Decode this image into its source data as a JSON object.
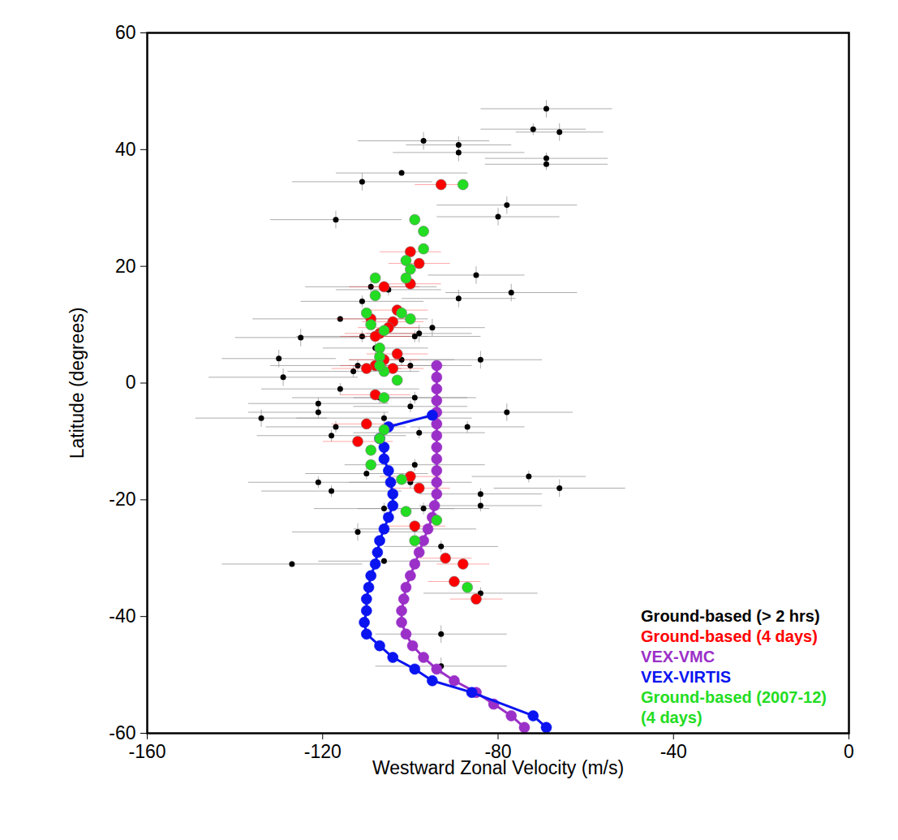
{
  "chart_data": {
    "type": "scatter",
    "xlabel": "Westward Zonal Velocity (m/s)",
    "ylabel": "Latitude (degrees)",
    "xlim": [
      -160,
      0
    ],
    "ylim": [
      -60,
      60
    ],
    "xticks": [
      -160,
      -120,
      -80,
      -40,
      0
    ],
    "yticks": [
      -60,
      -40,
      -20,
      0,
      20,
      40,
      60
    ],
    "grid": false,
    "legend": "bottom-right",
    "series": [
      {
        "name": "Ground-based (> 2 hrs)",
        "color": "#000000",
        "type": "scatter",
        "marker": "circle",
        "x": [
          -69,
          -72,
          -66,
          -97,
          -89,
          -89,
          -69,
          -69,
          -102,
          -111,
          -78,
          -117,
          -80,
          -85,
          -77,
          -89,
          -109,
          -105,
          -111,
          -116,
          -95,
          -98,
          -99,
          -125,
          -111,
          -108,
          -130,
          -102,
          -84,
          -112,
          -113,
          -129,
          -100,
          -116,
          -107,
          -99,
          -100,
          -78,
          -121,
          -121,
          -134,
          -106,
          -87,
          -117,
          -118,
          -98,
          -110,
          -99,
          -73,
          -66,
          -121,
          -118,
          -84,
          -84,
          -106,
          -97,
          -99,
          -112,
          -127,
          -106,
          -93,
          -84,
          -93,
          -93,
          -100
        ],
        "y": [
          47,
          43.5,
          43,
          41.5,
          40.8,
          39.5,
          38.5,
          37.5,
          36,
          34.5,
          30.5,
          28,
          28.5,
          18.5,
          15.5,
          14.5,
          16.5,
          16,
          14,
          11,
          9.5,
          8.5,
          8,
          7.8,
          8,
          6,
          4.2,
          4,
          4,
          3,
          2,
          1,
          3,
          -1,
          -2.5,
          -2.5,
          -4,
          -5,
          -3.5,
          -5,
          -6,
          -6,
          -7.5,
          -7.5,
          -9,
          -8.5,
          -15.5,
          -14,
          -16,
          -18,
          -17,
          -18.5,
          -19,
          -21,
          -21.5,
          -21.5,
          -25,
          -25.5,
          -31,
          -30.5,
          -28,
          -36,
          -43,
          -48.5,
          -17
        ],
        "xerr": [
          15,
          12,
          10,
          15,
          12,
          15,
          14,
          14,
          15,
          16,
          16,
          15,
          14,
          11,
          15,
          13,
          15,
          12,
          14,
          20,
          12,
          12,
          15,
          15,
          15,
          12,
          13,
          12,
          14,
          20,
          15,
          17,
          14,
          18,
          20,
          14,
          13,
          15,
          16,
          16,
          15,
          20,
          13,
          16,
          17,
          15,
          14,
          16,
          13,
          15,
          16,
          16,
          14,
          14,
          16,
          15,
          14,
          15,
          16,
          15,
          13,
          13,
          15,
          15,
          14
        ],
        "yerr": [
          1.5,
          1,
          1.5,
          1.5,
          1.5,
          1.5,
          1,
          1,
          0.5,
          1.5,
          1.5,
          1.5,
          1.5,
          1.5,
          1.5,
          1.5,
          1,
          1,
          1,
          0.5,
          1.5,
          1.5,
          1,
          1.5,
          1,
          1,
          1.5,
          1,
          1.5,
          1,
          1,
          1.5,
          1,
          1,
          1,
          1,
          1,
          1.5,
          1,
          1,
          1.5,
          1,
          1,
          1,
          1,
          1,
          1,
          1,
          1,
          1.5,
          1,
          1,
          1,
          1,
          1,
          1,
          1,
          1.5,
          0.5,
          0.5,
          1,
          1,
          1.5,
          1.5,
          1
        ]
      },
      {
        "name": "Ground-based (4 days)",
        "color": "#ff0000",
        "type": "scatter",
        "marker": "circle",
        "x": [
          -93,
          -100,
          -98,
          -100,
          -106,
          -103,
          -109,
          -104,
          -105,
          -107,
          -108,
          -103,
          -106,
          -108,
          -110,
          -104,
          -108,
          -110,
          -112,
          -100,
          -98,
          -99,
          -92,
          -88,
          -90,
          -85
        ],
        "y": [
          34,
          22.5,
          20.5,
          17,
          16.5,
          12.5,
          11,
          10.5,
          9.5,
          8.5,
          8,
          5,
          4,
          3,
          2.5,
          2.5,
          -2,
          -7,
          -10,
          -16,
          -18,
          -24.5,
          -30,
          -31,
          -34,
          -37
        ],
        "xerr": [
          6,
          7,
          7,
          7,
          8,
          7,
          8,
          7,
          7,
          8,
          8,
          7,
          8,
          8,
          8,
          7,
          8,
          8,
          8,
          7,
          7,
          7,
          6,
          6,
          6,
          6
        ]
      },
      {
        "name": "VEX-VMC",
        "color": "#9b30c8",
        "type": "line",
        "marker": "circle",
        "x": [
          -94,
          -94,
          -94,
          -94,
          -94,
          -94,
          -94,
          -94,
          -94,
          -94,
          -94,
          -94,
          -94.5,
          -95,
          -96,
          -97,
          -98,
          -99,
          -100,
          -101,
          -101.5,
          -102,
          -102,
          -101,
          -99.5,
          -97,
          -94,
          -90,
          -85,
          -81,
          -77,
          -74
        ],
        "y": [
          3,
          1,
          -1,
          -3,
          -5,
          -7,
          -9,
          -11,
          -13,
          -15,
          -17,
          -19,
          -21,
          -23,
          -25,
          -27,
          -29,
          -31,
          -33,
          -35,
          -37,
          -39,
          -41,
          -43,
          -45,
          -47,
          -49,
          -51,
          -53,
          -55,
          -57,
          -59
        ]
      },
      {
        "name": "VEX-VIRTIS",
        "color": "#0a14f0",
        "type": "line",
        "marker": "circle",
        "x": [
          -95,
          -105,
          -107,
          -106,
          -106,
          -105,
          -104.5,
          -104,
          -104,
          -105,
          -106,
          -107,
          -107.5,
          -108,
          -109,
          -109.5,
          -110,
          -110,
          -110.5,
          -110,
          -107,
          -104,
          -99,
          -95,
          -86,
          -72,
          -69
        ],
        "y": [
          -5.5,
          -7.5,
          -9.5,
          -11,
          -13,
          -15,
          -17,
          -19,
          -21,
          -23,
          -25,
          -27,
          -29,
          -31,
          -33,
          -35,
          -37,
          -39,
          -41,
          -43,
          -45,
          -47,
          -49,
          -51,
          -53,
          -57,
          -59
        ]
      },
      {
        "name": "Ground-based (2007-12)\n(4 days)",
        "color": "#22dd22",
        "type": "scatter",
        "marker": "circle",
        "x": [
          -88,
          -99,
          -97,
          -97,
          -101,
          -100,
          -101,
          -108,
          -108,
          -110,
          -102,
          -109,
          -106,
          -100,
          -107,
          -107,
          -106,
          -107,
          -103,
          -106,
          -106,
          -107,
          -109,
          -109,
          -102,
          -101,
          -99,
          -94,
          -87
        ],
        "y": [
          34,
          28,
          26,
          23,
          21,
          19.5,
          18,
          18,
          15,
          12,
          12,
          10,
          9,
          11,
          6,
          4.5,
          2,
          3,
          0.5,
          -2.5,
          -8,
          -9.5,
          -11.5,
          -14,
          -16.5,
          -22,
          -27,
          -23.5,
          -35
        ]
      }
    ]
  }
}
